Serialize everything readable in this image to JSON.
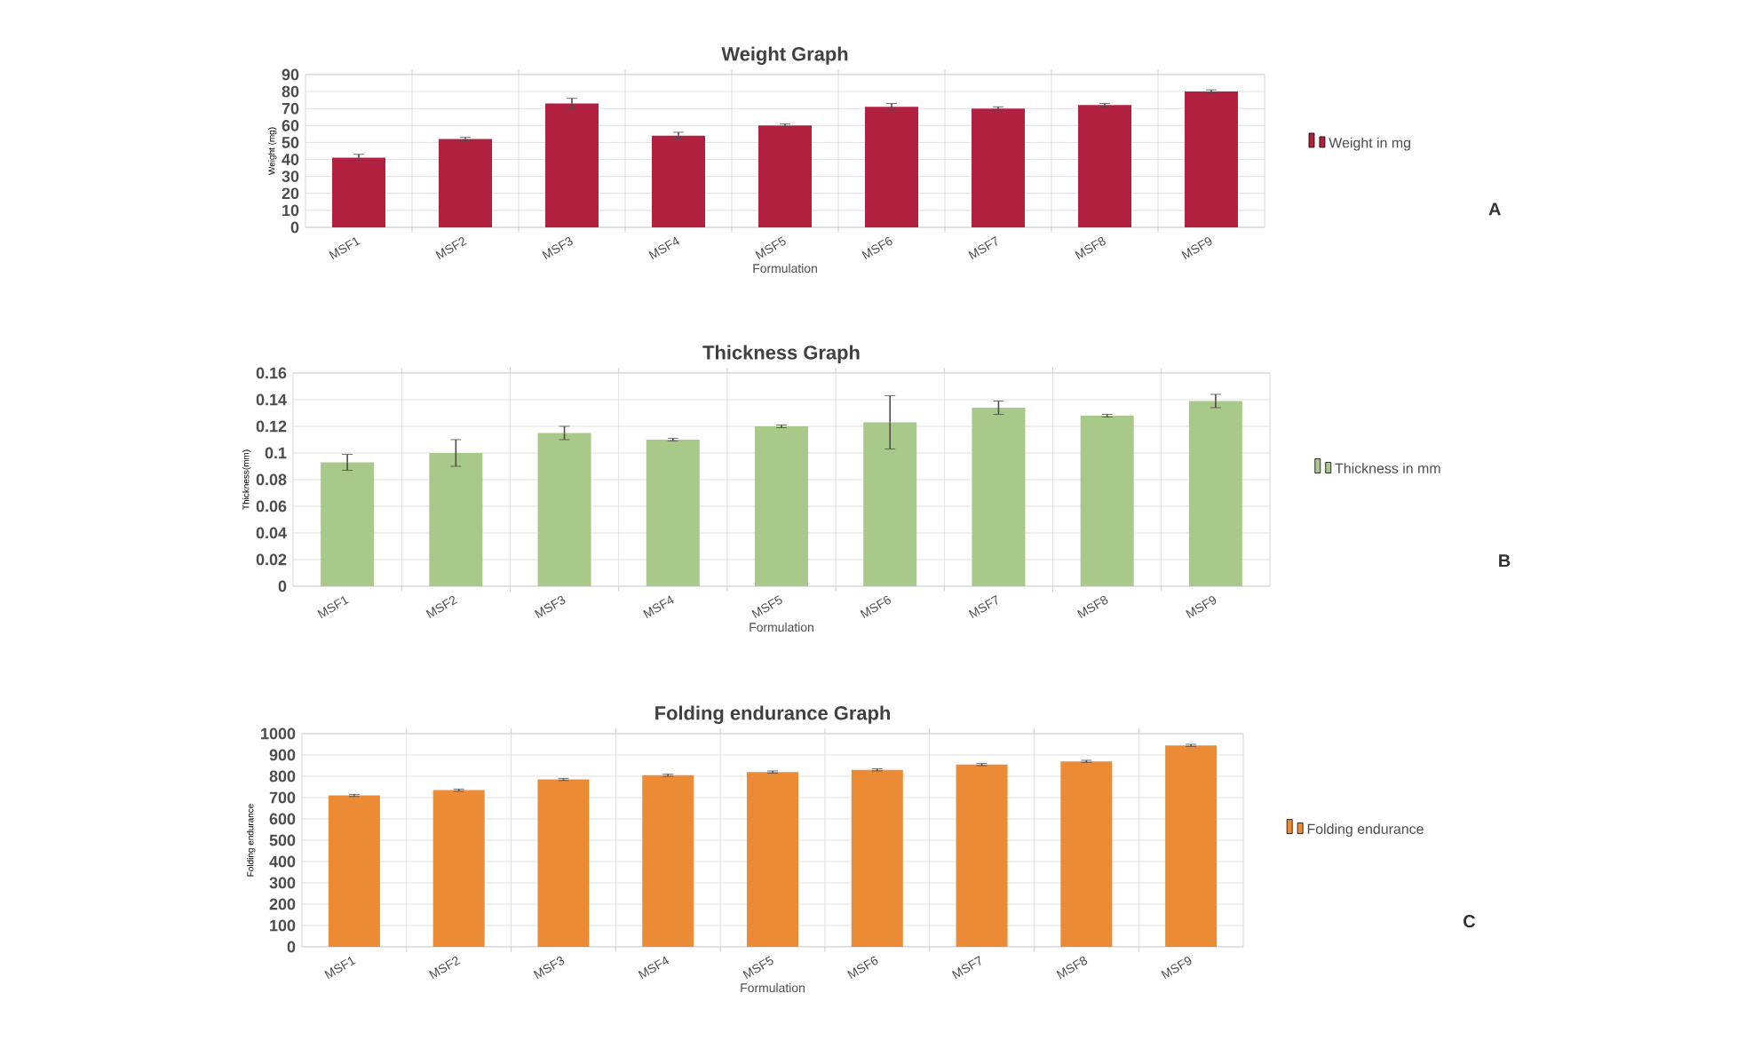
{
  "chart_data": [
    {
      "type": "bar",
      "title": "Weight Graph",
      "xlabel": "Formulation",
      "ylabel": "Weight (mg)",
      "categories": [
        "MSF1",
        "MSF2",
        "MSF3",
        "MSF4",
        "MSF5",
        "MSF6",
        "MSF7",
        "MSF8",
        "MSF9"
      ],
      "series": [
        {
          "name": "Weight in mg",
          "color": "#b22040",
          "values": [
            41,
            52,
            73,
            54,
            60,
            71,
            70,
            72,
            80
          ],
          "errors": [
            2,
            1,
            3,
            2,
            1,
            2,
            1,
            1,
            1
          ]
        }
      ],
      "ylim": [
        0,
        90
      ],
      "yticks": [
        0,
        10,
        20,
        30,
        40,
        50,
        60,
        70,
        80,
        90
      ],
      "grid": true,
      "legend": "right",
      "annotations": [
        "A"
      ]
    },
    {
      "type": "bar",
      "title": "Thickness Graph",
      "xlabel": "Formulation",
      "ylabel": "Thickness(mm)",
      "categories": [
        "MSF1",
        "MSF2",
        "MSF3",
        "MSF4",
        "MSF5",
        "MSF6",
        "MSF7",
        "MSF8",
        "MSF9"
      ],
      "series": [
        {
          "name": "Thickness in mm",
          "color": "#a9c98a",
          "values": [
            0.093,
            0.1,
            0.115,
            0.11,
            0.12,
            0.123,
            0.134,
            0.128,
            0.139
          ],
          "errors": [
            0.006,
            0.01,
            0.005,
            0.001,
            0.001,
            0.02,
            0.005,
            0.001,
            0.005
          ]
        }
      ],
      "ylim": [
        0,
        0.16
      ],
      "yticks": [
        0,
        0.02,
        0.04,
        0.06,
        0.08,
        0.1,
        0.12,
        0.14,
        0.16
      ],
      "grid": true,
      "legend": "right",
      "annotations": [
        "B"
      ]
    },
    {
      "type": "bar",
      "title": "Folding endurance Graph",
      "xlabel": "Formulation",
      "ylabel": "Folding endurance",
      "categories": [
        "MSF1",
        "MSF2",
        "MSF3",
        "MSF4",
        "MSF5",
        "MSF6",
        "MSF7",
        "MSF8",
        "MSF9"
      ],
      "series": [
        {
          "name": "Folding endurance",
          "color": "#ec8b35",
          "values": [
            710,
            735,
            785,
            805,
            820,
            830,
            855,
            870,
            945
          ],
          "errors": [
            5,
            5,
            5,
            5,
            5,
            5,
            5,
            5,
            5
          ]
        }
      ],
      "ylim": [
        0,
        1000
      ],
      "yticks": [
        0,
        100,
        200,
        300,
        400,
        500,
        600,
        700,
        800,
        900,
        1000
      ],
      "grid": true,
      "legend": "right",
      "annotations": [
        "C"
      ]
    }
  ]
}
